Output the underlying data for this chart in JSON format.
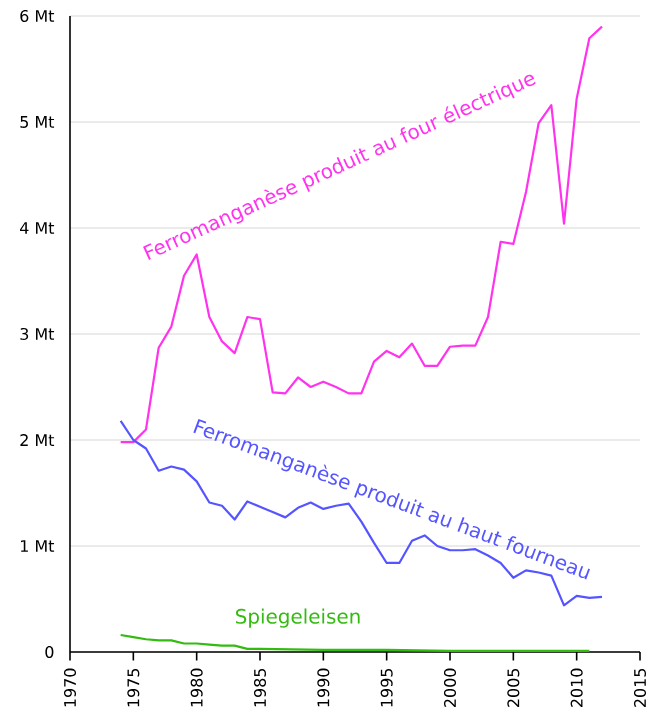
{
  "chart_data": {
    "type": "line",
    "x": [
      1974,
      1975,
      1976,
      1977,
      1978,
      1979,
      1980,
      1981,
      1982,
      1983,
      1984,
      1985,
      1986,
      1987,
      1988,
      1989,
      1990,
      1991,
      1992,
      1993,
      1994,
      1995,
      1996,
      1997,
      1998,
      1999,
      2000,
      2001,
      2002,
      2003,
      2004,
      2005,
      2006,
      2007,
      2008,
      2009,
      2010,
      2011,
      2012
    ],
    "series": [
      {
        "name": "Ferromanganèse produit au four électrique",
        "color": "#ff33ee",
        "values": [
          1.98,
          1.98,
          2.1,
          2.87,
          3.07,
          3.55,
          3.75,
          3.16,
          2.93,
          2.82,
          3.16,
          3.14,
          2.45,
          2.44,
          2.59,
          2.5,
          2.55,
          2.5,
          2.44,
          2.44,
          2.74,
          2.84,
          2.78,
          2.91,
          2.7,
          2.7,
          2.88,
          2.89,
          2.89,
          3.16,
          3.87,
          3.85,
          4.34,
          4.99,
          5.16,
          4.04,
          5.22,
          5.79,
          5.9
        ]
      },
      {
        "name": "Ferromanganèse produit au haut fourneau",
        "color": "#5555ff",
        "values": [
          2.18,
          2.0,
          1.92,
          1.71,
          1.75,
          1.72,
          1.61,
          1.41,
          1.38,
          1.25,
          1.42,
          1.37,
          1.32,
          1.27,
          1.36,
          1.41,
          1.35,
          1.38,
          1.4,
          1.23,
          1.03,
          0.84,
          0.84,
          1.05,
          1.1,
          1.0,
          0.96,
          0.96,
          0.97,
          0.91,
          0.84,
          0.7,
          0.77,
          0.75,
          0.72,
          0.44,
          0.53,
          0.51,
          0.52
        ]
      },
      {
        "name": "Spiegeleisen",
        "color": "#33bb11",
        "x": [
          1974,
          1975,
          1976,
          1977,
          1978,
          1979,
          1980,
          1981,
          1982,
          1983,
          1984,
          1985,
          1990,
          1995,
          2000,
          2005,
          2011
        ],
        "values": [
          0.16,
          0.14,
          0.12,
          0.11,
          0.11,
          0.08,
          0.08,
          0.07,
          0.06,
          0.06,
          0.03,
          0.03,
          0.02,
          0.02,
          0.01,
          0.01,
          0.01
        ]
      }
    ],
    "xlim": [
      1970,
      2015
    ],
    "xticks": [
      1970,
      1975,
      1980,
      1985,
      1990,
      1995,
      2000,
      2005,
      2010,
      2015
    ],
    "ylim": [
      0,
      6
    ],
    "yticks": [
      0,
      {
        "value": 1,
        "label": "1 Mt"
      },
      {
        "value": 2,
        "label": "2 Mt"
      },
      {
        "value": 3,
        "label": "3 Mt"
      },
      {
        "value": 4,
        "label": "4 Mt"
      },
      {
        "value": 5,
        "label": "5 Mt"
      },
      {
        "value": 6,
        "label": "6 Mt"
      }
    ],
    "grid": "y",
    "marker": "none",
    "line_style": "solid"
  }
}
